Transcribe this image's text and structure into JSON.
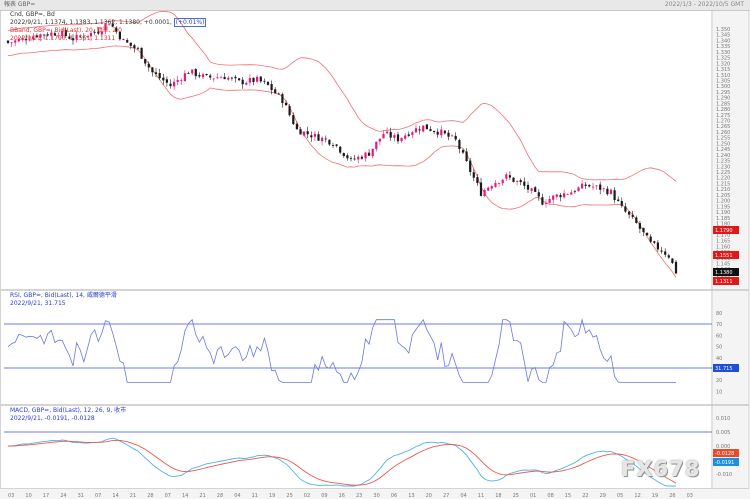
{
  "window": {
    "title": "報表 GBP=",
    "date_range": "2022/1/3 - 2022/10/5 GMT"
  },
  "price_panel": {
    "legend_line1": "Cnd, GBP=, Bd",
    "legend_line2": "2022/9/21, 1.1374, 1.1383, 1.1362, 1.1380, +0.0001,",
    "change_pct": "(+0.01%)",
    "legend_line3": "BBand, GBP=, Bid(Last), 20, 簡單, 2.0",
    "legend_line4": "2022/9/21, 1.1790, 1.1551, 1.1311",
    "price_labels": [
      "1.350",
      "1.345",
      "1.340",
      "1.335",
      "1.330",
      "1.325",
      "1.320",
      "1.315",
      "1.310",
      "1.305",
      "1.300",
      "1.295",
      "1.290",
      "1.285",
      "1.280",
      "1.275",
      "1.270",
      "1.265",
      "1.260",
      "1.255",
      "1.250",
      "1.245",
      "1.240",
      "1.235",
      "1.230",
      "1.225",
      "1.220",
      "1.215",
      "1.210",
      "1.205",
      "1.200",
      "1.195",
      "1.190",
      "1.185",
      "1.180",
      "1.175",
      "1.170",
      "1.165",
      "1.160",
      "1.155",
      "1.150",
      "1.145",
      "1.140",
      "1.135",
      "1.130"
    ],
    "tags": [
      {
        "text": "1.1790",
        "color": "#e01818"
      },
      {
        "text": "1.1551",
        "color": "#e01818"
      },
      {
        "text": "1.1380",
        "color": "#111111"
      },
      {
        "text": "1.1311",
        "color": "#e01818"
      }
    ]
  },
  "rsi_panel": {
    "legend_line1": "RSI, GBP=, Bid(Last), 14, 威爾德平滑",
    "legend_line2": "2022/9/21, 31.715",
    "labels": [
      "80",
      "70",
      "60",
      "50",
      "40",
      "30",
      "20",
      "10"
    ],
    "tag": {
      "text": "31.715",
      "color": "#1d4fd8"
    }
  },
  "macd_panel": {
    "legend_line1": "MACD, GBP=, Bid(Last), 12, 26, 9, 收市",
    "legend_line2": "2022/9/21, -0.0191, -0.0128",
    "labels": [
      "0.010",
      "0.005",
      "0.000",
      "-0.005",
      "-0.010"
    ],
    "tags": [
      {
        "text": "-0.0128",
        "color": "#e84a2a"
      },
      {
        "text": "-0.0191",
        "color": "#1d8fe0"
      }
    ]
  },
  "time_axis": [
    "03",
    "10",
    "17",
    "24",
    "31",
    "07",
    "14",
    "21",
    "28",
    "07",
    "14",
    "21",
    "28",
    "04",
    "11",
    "19",
    "25",
    "02",
    "09",
    "16",
    "23",
    "30",
    "06",
    "13",
    "20",
    "27",
    "04",
    "11",
    "18",
    "25",
    "01",
    "08",
    "15",
    "22",
    "29",
    "05",
    "12",
    "19",
    "26",
    "03"
  ],
  "colors": {
    "up": "#e8187a",
    "down": "#1a1a1a",
    "bband": "#f07070",
    "rsi": "#6a78e0",
    "macd": "#e85a4a",
    "signal": "#50b0f0",
    "level": "#3c4ce8"
  },
  "watermark": "FX678"
}
